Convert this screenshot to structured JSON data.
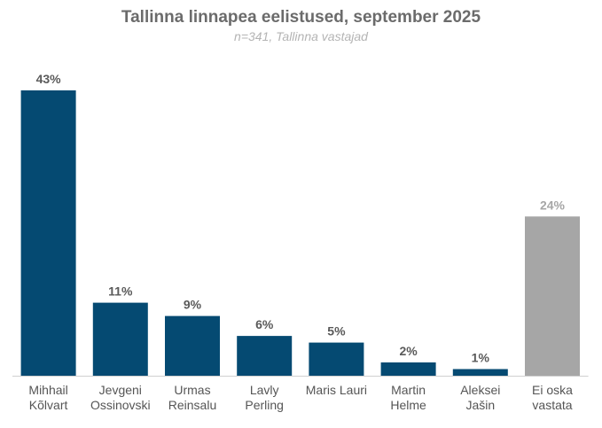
{
  "chart_data": {
    "type": "bar",
    "title": "Tallinna linnapea eelistused, september 2025",
    "subtitle": "n=341, Tallinna vastajad",
    "categories": [
      [
        "Mihhail",
        "Kõlvart"
      ],
      [
        "Jevgeni",
        "Ossinovski"
      ],
      [
        "Urmas",
        "Reinsalu"
      ],
      [
        "Lavly",
        "Perling"
      ],
      [
        "Maris Lauri"
      ],
      [
        "Martin",
        "Helme"
      ],
      [
        "Aleksei",
        "Jašin"
      ],
      [
        "Ei oska",
        "vastata"
      ]
    ],
    "values": [
      43,
      11,
      9,
      6,
      5,
      2,
      1,
      24
    ],
    "value_labels": [
      "43%",
      "11%",
      "9%",
      "6%",
      "5%",
      "2%",
      "1%",
      "24%"
    ],
    "colors": [
      "#054a72",
      "#054a72",
      "#054a72",
      "#054a72",
      "#054a72",
      "#054a72",
      "#054a72",
      "#a6a6a6"
    ],
    "label_colors": [
      "#5a5a5a",
      "#5a5a5a",
      "#5a5a5a",
      "#5a5a5a",
      "#5a5a5a",
      "#5a5a5a",
      "#5a5a5a",
      "#a6a6a6"
    ],
    "xlabel": "",
    "ylabel": "",
    "ylim": [
      0,
      43
    ],
    "grid": false,
    "legend": "none"
  }
}
